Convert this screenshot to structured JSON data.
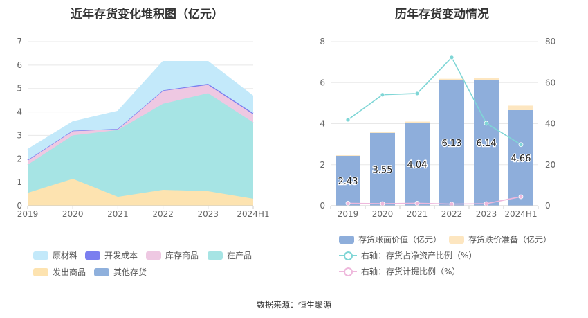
{
  "source": "数据来源：恒生聚源",
  "chart_data": [
    {
      "type": "area",
      "title": "近年存货变化堆积图（亿元）",
      "categories": [
        "2019",
        "2020",
        "2021",
        "2022",
        "2023",
        "2024H1"
      ],
      "ylim": [
        0,
        7
      ],
      "yticks": [
        0,
        1,
        2,
        3,
        4,
        5,
        6,
        7
      ],
      "stacked": true,
      "series": [
        {
          "name": "其他存货",
          "color": "#8fb0dc",
          "values": [
            0,
            0,
            0,
            0,
            0,
            0
          ]
        },
        {
          "name": "发出商品",
          "color": "#fde3b0",
          "values": [
            0.55,
            1.15,
            0.38,
            0.68,
            0.62,
            0.3
          ]
        },
        {
          "name": "在产品",
          "color": "#a6e4e4",
          "values": [
            1.2,
            1.85,
            2.85,
            3.67,
            4.18,
            3.25
          ]
        },
        {
          "name": "库存商品",
          "color": "#eec8e2",
          "values": [
            0.2,
            0.2,
            0.05,
            0.55,
            0.35,
            0.35
          ]
        },
        {
          "name": "开发成本",
          "color": "#7b7fef",
          "values": [
            0,
            0,
            0,
            0.02,
            0.05,
            0.05
          ]
        },
        {
          "name": "原材料",
          "color": "#c3e9fa",
          "values": [
            0.45,
            0.38,
            0.75,
            1.23,
            0.95,
            0.72
          ]
        }
      ],
      "legend": [
        "原材料",
        "开发成本",
        "库存商品",
        "在产品",
        "发出商品",
        "其他存货"
      ],
      "legend_placement": "bottom",
      "grid": true
    },
    {
      "type": "bar",
      "title": "历年存货变动情况",
      "categories": [
        "2019",
        "2020",
        "2021",
        "2022",
        "2023",
        "2024H1"
      ],
      "ylim": [
        0,
        8
      ],
      "yticks": [
        0,
        2,
        4,
        6,
        8
      ],
      "y2lim": [
        0,
        80
      ],
      "y2ticks": [
        0,
        20,
        40,
        60,
        80
      ],
      "series": [
        {
          "name": "存货账面价值（亿元）",
          "color": "#8eaedb",
          "values": [
            2.43,
            3.55,
            4.04,
            6.13,
            6.14,
            4.66
          ],
          "labels": [
            "2.43",
            "3.55",
            "4.04",
            "6.13",
            "6.14",
            "4.66"
          ]
        },
        {
          "name": "存货跌价准备（亿元）",
          "color": "#fde6c0",
          "values": [
            0.03,
            0.04,
            0.06,
            0.06,
            0.08,
            0.22
          ]
        },
        {
          "name": "右轴：存货占净资产比例（%）",
          "color": "#7fd6d6",
          "type": "line",
          "axis": "right",
          "values": [
            41.9,
            54.1,
            54.7,
            72.3,
            40.2,
            29.8
          ]
        },
        {
          "name": "右轴：存货计提比例（%）",
          "color": "#eeb8dc",
          "type": "line",
          "axis": "right",
          "values": [
            1.2,
            1.0,
            1.2,
            0.8,
            1.0,
            4.4
          ]
        }
      ],
      "legend_placement": "bottom",
      "grid": true
    }
  ]
}
